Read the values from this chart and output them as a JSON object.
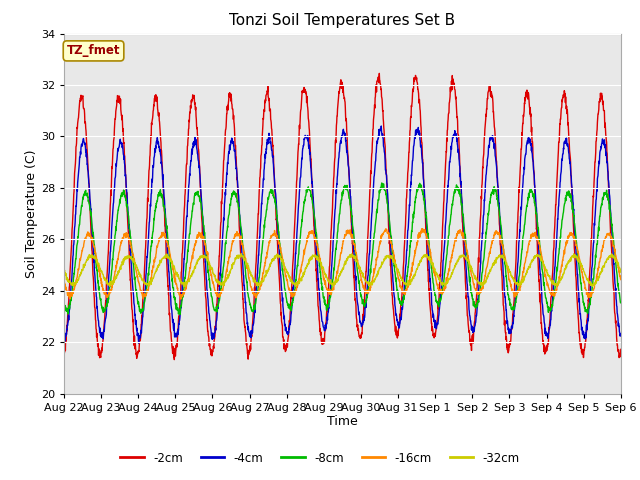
{
  "title": "Tonzi Soil Temperatures Set B",
  "xlabel": "Time",
  "ylabel": "Soil Temperature (C)",
  "ylim": [
    20,
    34
  ],
  "series_colors": {
    "-2cm": "#dd0000",
    "-4cm": "#0000cc",
    "-8cm": "#00bb00",
    "-16cm": "#ff8800",
    "-32cm": "#cccc00"
  },
  "legend_colors": [
    "#dd0000",
    "#0000cc",
    "#00bb00",
    "#ff8800",
    "#cccc00"
  ],
  "legend_labels": [
    "-2cm",
    "-4cm",
    "-8cm",
    "-16cm",
    "-32cm"
  ],
  "annotation_text": "TZ_fmet",
  "annotation_bg": "#ffffcc",
  "annotation_border": "#aa8800",
  "fig_bg": "#ffffff",
  "plot_bg": "#e8e8e8",
  "grid_color": "#ffffff",
  "tick_labels": [
    "Aug 22",
    "Aug 23",
    "Aug 24",
    "Aug 25",
    "Aug 26",
    "Aug 27",
    "Aug 28",
    "Aug 29",
    "Aug 30",
    "Aug 31",
    "Sep 1",
    "Sep 2",
    "Sep 3",
    "Sep 4",
    "Sep 5",
    "Sep 6"
  ]
}
